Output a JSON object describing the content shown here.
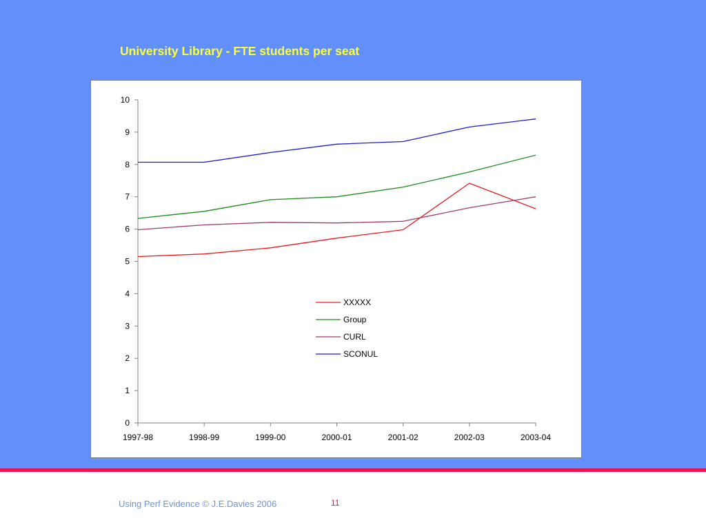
{
  "slide": {
    "footer": "Using Perf Evidence © J.E.Davies 2006",
    "page_number": "11"
  },
  "chart_data": {
    "type": "line",
    "title": "University Library - FTE students per seat",
    "xlabel": "",
    "ylabel": "",
    "categories": [
      "1997-98",
      "1998-99",
      "1999-00",
      "2000-01",
      "2001-02",
      "2002-03",
      "2003-04"
    ],
    "ylim": [
      0,
      10
    ],
    "yticks": [
      0,
      1,
      2,
      3,
      4,
      5,
      6,
      7,
      8,
      9,
      10
    ],
    "grid": false,
    "legend_position": "center",
    "series": [
      {
        "name": "XXXXX",
        "color": "#e8181e",
        "values": [
          5.15,
          5.23,
          5.42,
          5.72,
          5.98,
          7.42,
          6.63
        ]
      },
      {
        "name": "Group",
        "color": "#1b8a1b",
        "values": [
          6.33,
          6.55,
          6.91,
          7.0,
          7.3,
          7.77,
          8.29
        ]
      },
      {
        "name": "CURL",
        "color": "#9b3a6c",
        "values": [
          5.98,
          6.13,
          6.21,
          6.19,
          6.24,
          6.66,
          7.0
        ]
      },
      {
        "name": "SCONUL",
        "color": "#1a1ac2",
        "values": [
          8.07,
          8.07,
          8.37,
          8.63,
          8.71,
          9.16,
          9.41
        ]
      }
    ]
  }
}
